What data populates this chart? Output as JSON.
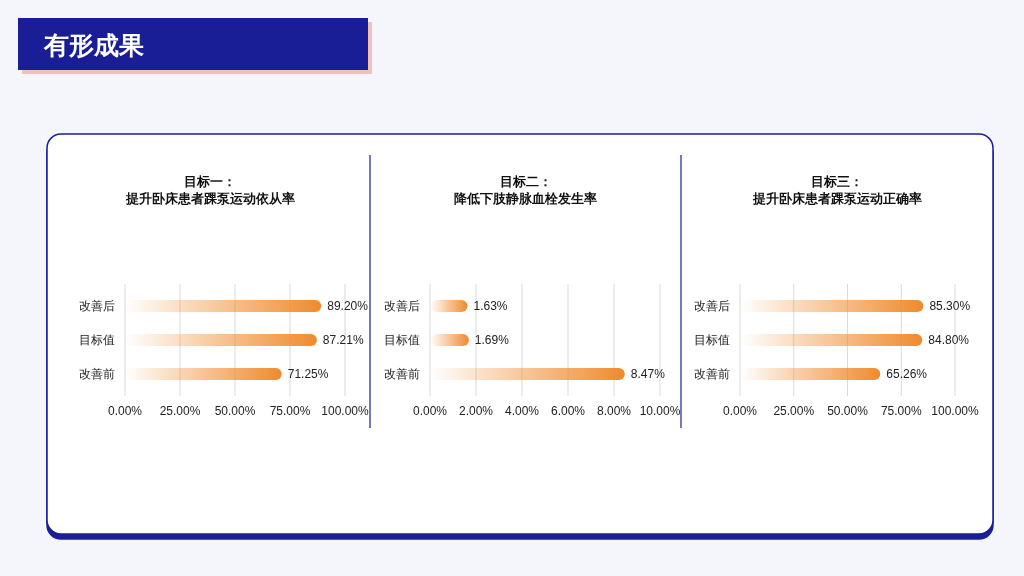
{
  "chart_data": [
    {
      "type": "bar",
      "orientation": "horizontal",
      "title": "目标一：",
      "subtitle": "提升卧床患者踝泵运动依从率",
      "annotations": [
        "有形成果"
      ],
      "categories": [
        "改善后",
        "目标值",
        "改善前"
      ],
      "values": [
        89.2,
        87.21,
        71.25
      ],
      "value_labels": [
        "89.20%",
        "87.21%",
        "71.25%"
      ],
      "color": "#f08a2c",
      "xlim": [
        0,
        100
      ],
      "xticks": [
        {
          "value": 0,
          "label": "0.00%"
        },
        {
          "value": 25,
          "label": "25.00%"
        },
        {
          "value": 50,
          "label": "50.00%"
        },
        {
          "value": 75,
          "label": "75.00%"
        },
        {
          "value": 100,
          "label": "100.00%"
        }
      ],
      "grid": "x"
    },
    {
      "type": "bar",
      "orientation": "horizontal",
      "title": "目标二：",
      "subtitle": "降低下肢静脉血栓发生率",
      "categories": [
        "改善后",
        "目标值",
        "改善前"
      ],
      "values": [
        1.63,
        1.69,
        8.47
      ],
      "value_labels": [
        "1.63%",
        "1.69%",
        "8.47%"
      ],
      "color": "#f08a2c",
      "xlim": [
        0,
        10
      ],
      "xticks": [
        {
          "value": 0,
          "label": "0.00%"
        },
        {
          "value": 2,
          "label": "2.00%"
        },
        {
          "value": 4,
          "label": "4.00%"
        },
        {
          "value": 6,
          "label": "6.00%"
        },
        {
          "value": 8,
          "label": "8.00%"
        },
        {
          "value": 10,
          "label": "10.00%"
        }
      ],
      "grid": "x"
    },
    {
      "type": "bar",
      "orientation": "horizontal",
      "title": "目标三：",
      "subtitle": "提升卧床患者踝泵运动正确率",
      "categories": [
        "改善后",
        "目标值",
        "改善前"
      ],
      "values": [
        85.3,
        84.8,
        65.26
      ],
      "value_labels": [
        "85.30%",
        "84.80%",
        "65.26%"
      ],
      "color": "#f08a2c",
      "xlim": [
        0,
        100
      ],
      "xticks": [
        {
          "value": 0,
          "label": "0.00%"
        },
        {
          "value": 25,
          "label": "25.00%"
        },
        {
          "value": 50,
          "label": "50.00%"
        },
        {
          "value": 75,
          "label": "75.00%"
        },
        {
          "value": 100,
          "label": "100.00%"
        }
      ],
      "grid": "x"
    }
  ]
}
